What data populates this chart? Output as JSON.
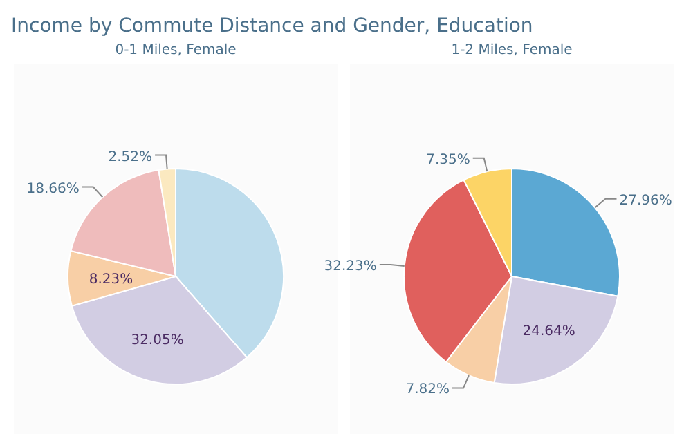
{
  "chart_data": [
    {
      "type": "pie",
      "title": "Income by Commute Distance and Gender, Education",
      "subtitle": "0-1 Miles, Female",
      "categories": [
        null,
        null,
        null,
        null,
        null
      ],
      "values": [
        38.54,
        32.05,
        8.23,
        18.66,
        2.52
      ],
      "colors": [
        "#bddcec",
        "#d2cde3",
        "#f8cfa6",
        "#efbcbc",
        "#fbe9c0"
      ],
      "value_labels": [
        null,
        "32.05%",
        "8.23%",
        "18.66%",
        "2.52%"
      ]
    },
    {
      "type": "pie",
      "subtitle": "1-2 Miles, Female",
      "categories": [
        null,
        null,
        null,
        null,
        null
      ],
      "values": [
        27.96,
        24.64,
        7.82,
        32.23,
        7.35
      ],
      "colors": [
        "#5ba8d3",
        "#d2cde3",
        "#f8cfa6",
        "#e0605d",
        "#fcd466"
      ],
      "value_labels": [
        "27.96%",
        "24.64%",
        "7.82%",
        "32.23%",
        "7.35%"
      ]
    }
  ]
}
